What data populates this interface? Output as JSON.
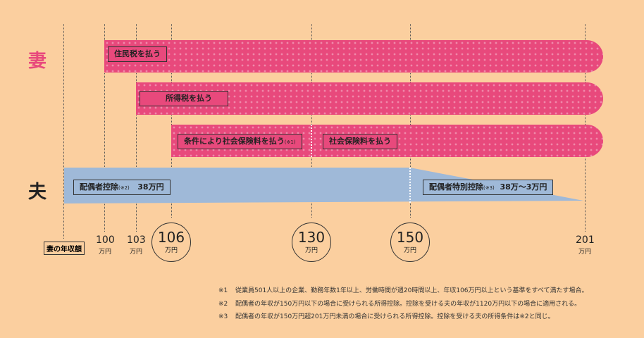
{
  "side_labels": {
    "wife": "妻",
    "husband": "夫"
  },
  "bars": {
    "resident_tax": "住民税を払う",
    "income_tax": "所得税を払う",
    "conditional_insurance": "条件により社会保険料を払う",
    "conditional_insurance_note": "(※1)",
    "insurance": "社会保険料を払う"
  },
  "husband_bars": {
    "spouse_deduction": "配偶者控除",
    "spouse_deduction_note": "(※2)",
    "spouse_deduction_amount": "38万円",
    "special_deduction": "配偶者特別控除",
    "special_deduction_note": "(※3)",
    "special_deduction_amount": "38万～3万円"
  },
  "axis": {
    "label": "妻の年収額",
    "unit": "万円",
    "ticks": [
      "100",
      "103",
      "106",
      "130",
      "150",
      "201"
    ],
    "highlighted": [
      "106",
      "130",
      "150"
    ]
  },
  "notes": [
    {
      "mark": "※1",
      "text": "従業員501人以上の企業、勤務年数1年以上、労働時間が週20時間以上、年収106万円以上という基準をすべて満たす場合。"
    },
    {
      "mark": "※2",
      "text": "配偶者の年収が150万円以下の場合に受けられる所得控除。控除を受ける夫の年収が1120万円以下の場合に適用される。"
    },
    {
      "mark": "※3",
      "text": "配偶者の年収が150万円超201万円未満の場合に受けられる所得控除。控除を受ける夫の所得条件は※2と同じ。"
    }
  ],
  "colors": {
    "background": "#fbcf9f",
    "pink": "#e8497c",
    "blue": "#9fb9d8",
    "wife_label": "#e8497c",
    "husband_label": "#222222"
  }
}
